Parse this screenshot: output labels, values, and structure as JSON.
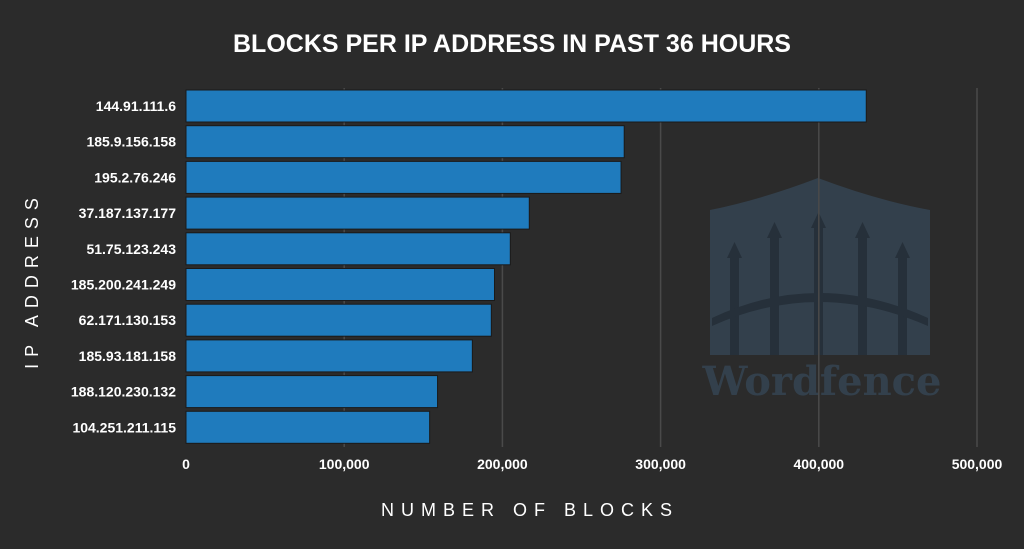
{
  "chart_data": {
    "type": "bar",
    "orientation": "horizontal",
    "title": "BLOCKS PER IP ADDRESS IN PAST 36 HOURS",
    "xlabel": "NUMBER OF BLOCKS",
    "ylabel": "IP ADDRESS",
    "categories": [
      "144.91.111.6",
      "185.9.156.158",
      "195.2.76.246",
      "37.187.137.177",
      "51.75.123.243",
      "185.200.241.249",
      "62.171.130.153",
      "185.93.181.158",
      "188.120.230.132",
      "104.251.211.115"
    ],
    "values": [
      430000,
      277000,
      275000,
      217000,
      205000,
      195000,
      193000,
      181000,
      159000,
      154000
    ],
    "xlim": [
      0,
      500000
    ],
    "xticks": [
      "0",
      "100,000",
      "200,000",
      "300,000",
      "400,000",
      "500,000"
    ],
    "xtick_values": [
      0,
      100000,
      200000,
      300000,
      400000,
      500000
    ],
    "grid": "vertical",
    "legend": "none"
  },
  "colors": {
    "background": "#2b2b2b",
    "bar": "#1f7bbd",
    "text": "#ffffff",
    "grid": "#4a4a4a",
    "watermark": "#3a4652"
  },
  "watermark": {
    "text": "Wordfence",
    "icon": "wordfence-fence-logo"
  }
}
